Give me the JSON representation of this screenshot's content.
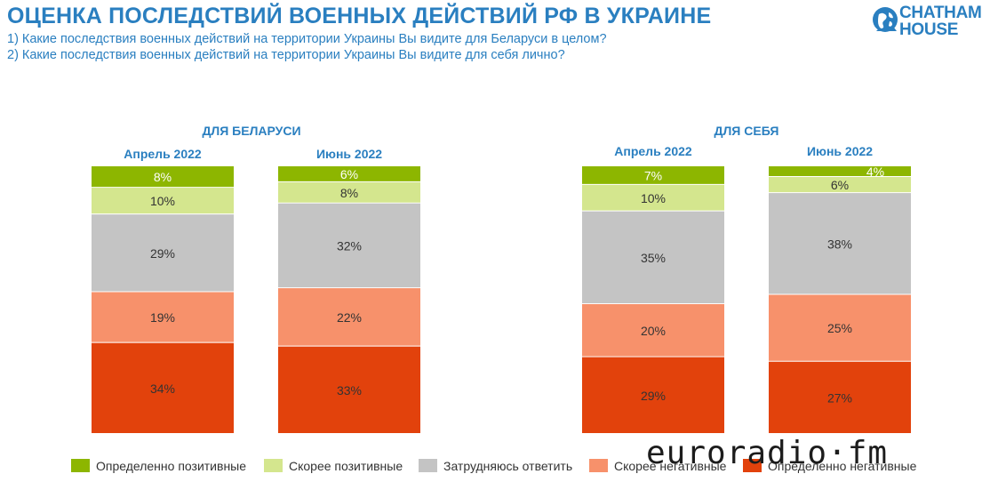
{
  "header": {
    "title": "ОЦЕНКА ПОСЛЕДСТВИЙ ВОЕННЫХ ДЕЙСТВИЙ РФ В УКРАИНЕ",
    "question_1": "1) Какие последствия военных действий на территории Украины Вы видите для Беларуси в целом?",
    "question_2": "2) Какие последствия военных действий на территории Украины Вы видите для себя лично?",
    "logo_line_1": "CHATHAM",
    "logo_line_2": "HOUSE"
  },
  "colors": {
    "title_blue": "#2a7fc0",
    "definitely_positive": "#8db600",
    "rather_positive": "#d4e68e",
    "hard_to_say": "#c4c4c4",
    "rather_negative": "#f7916b",
    "definitely_negative": "#e2420c"
  },
  "chart_data": {
    "type": "bar",
    "stacked": true,
    "percent": true,
    "groups": [
      {
        "title": "ДЛЯ БЕЛАРУСИ",
        "categories": [
          "Апрель 2022",
          "Июнь 2022"
        ]
      },
      {
        "title": "ДЛЯ СЕБЯ",
        "categories": [
          "Апрель 2022",
          "Июнь 2022"
        ]
      }
    ],
    "series": [
      {
        "name": "Определенно позитивные",
        "color": "#8db600",
        "values": [
          8,
          6,
          7,
          4
        ]
      },
      {
        "name": "Скорее позитивные",
        "color": "#d4e68e",
        "values": [
          10,
          8,
          10,
          6
        ]
      },
      {
        "name": "Затрудняюсь ответить",
        "color": "#c4c4c4",
        "values": [
          29,
          32,
          35,
          38
        ]
      },
      {
        "name": "Скорее негативные",
        "color": "#f7916b",
        "values": [
          19,
          22,
          20,
          25
        ]
      },
      {
        "name": "Определенно негативные",
        "color": "#e2420c",
        "values": [
          34,
          33,
          29,
          27
        ]
      }
    ],
    "data_labels": [
      [
        "8%",
        "6%",
        "7%",
        "4%"
      ],
      [
        "10%",
        "8%",
        "10%",
        "6%"
      ],
      [
        "29%",
        "32%",
        "35%",
        "38%"
      ],
      [
        "19%",
        "22%",
        "20%",
        "25%"
      ],
      [
        "34%",
        "33%",
        "29%",
        "27%"
      ]
    ],
    "legend_position": "bottom"
  },
  "watermark": "euroradio·fm"
}
